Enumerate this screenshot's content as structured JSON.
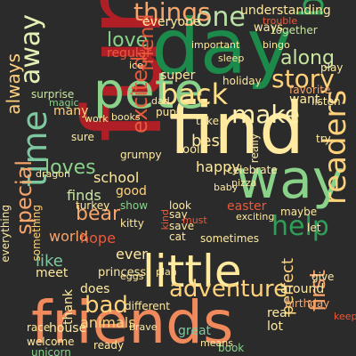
{
  "words": {
    "fun": {
      "text": "fun",
      "color": "#b01f26"
    },
    "friends": {
      "text": "friends",
      "color": "#f08a5d"
    },
    "find": {
      "text": "find",
      "color": "#ffeaa0"
    },
    "day": {
      "text": "day",
      "color": "#1b8a4a"
    },
    "new": {
      "text": "new",
      "color": "#e85a3c"
    },
    "little": {
      "text": "little",
      "color": "#ffeaa0"
    },
    "way": {
      "text": "way",
      "color": "#8ad28a"
    },
    "pete": {
      "text": "pete",
      "color": "#8ad28a"
    },
    "time": {
      "text": "time",
      "color": "#7ec8a0"
    },
    "one": {
      "text": "one",
      "color": "#b9e0a5"
    },
    "big": {
      "text": "big",
      "color": "#2f9f57"
    },
    "things": {
      "text": "things",
      "color": "#f7a56b"
    },
    "love": {
      "text": "love",
      "color": "#8ad28a"
    },
    "back": {
      "text": "back",
      "color": "#ffe08a"
    },
    "make": {
      "text": "make",
      "color": "#fff0b0"
    },
    "story": {
      "text": "story",
      "color": "#ffd27a"
    },
    "along": {
      "text": "along",
      "color": "#c8e6a0"
    },
    "away": {
      "text": "away",
      "color": "#e3f0b6"
    },
    "special": {
      "text": "special",
      "color": "#f7a56b"
    },
    "always": {
      "text": "always",
      "color": "#ffcf7a"
    },
    "loves": {
      "text": "loves",
      "color": "#8ad28a"
    },
    "adventure": {
      "text": "adventure",
      "color": "#ffd27a"
    },
    "help": {
      "text": "help",
      "color": "#2f9f57"
    },
    "readers": {
      "text": "readers",
      "color": "#ffd27a"
    },
    "excited": {
      "text": "excited",
      "color": "#e85a3c"
    },
    "bear": {
      "text": "bear",
      "color": "#f7a56b"
    },
    "bad": {
      "text": "bad",
      "color": "#ffd27a"
    },
    "school": {
      "text": "school",
      "color": "#ffeaa0"
    },
    "friend": {
      "text": "friend",
      "color": "#e85a3c"
    },
    "super": {
      "text": "super",
      "color": "#ffeaa0"
    },
    "everyone": {
      "text": "everyone",
      "color": "#ffeaa0"
    },
    "regular": {
      "text": "regular",
      "color": "#e85a3c"
    },
    "many": {
      "text": "many",
      "color": "#ffd27a"
    },
    "world": {
      "text": "world",
      "color": "#f7a56b"
    },
    "like": {
      "text": "like",
      "color": "#7ec8a0"
    },
    "ever": {
      "text": "ever",
      "color": "#ffeaa0"
    },
    "good": {
      "text": "good",
      "color": "#ffd27a"
    },
    "finds": {
      "text": "finds",
      "color": "#c8e6a0"
    },
    "perfect": {
      "text": "perfect",
      "color": "#ffd27a"
    },
    "happy": {
      "text": "happy",
      "color": "#ffeaa0"
    },
    "best": {
      "text": "best",
      "color": "#ffeaa0"
    },
    "house": {
      "text": "house",
      "color": "#ffeaa0"
    },
    "animals": {
      "text": "animals",
      "color": "#ffd27a"
    },
    "first": {
      "text": "first",
      "color": "#f7a56b"
    },
    "understanding": {
      "text": "understanding",
      "color": "#ffeaa0"
    },
    "want": {
      "text": "want",
      "color": "#ffeaa0"
    },
    "together": {
      "text": "together",
      "color": "#c8e6a0"
    },
    "holiday": {
      "text": "holiday",
      "color": "#ffeaa0"
    },
    "pups": {
      "text": "pups",
      "color": "#ffeaa0"
    },
    "dad": {
      "text": "dad",
      "color": "#ffeaa0"
    },
    "grumpy": {
      "text": "grumpy",
      "color": "#ffeaa0"
    },
    "cool": {
      "text": "cool",
      "color": "#ffeaa0"
    },
    "ice": {
      "text": "ice",
      "color": "#ffeaa0"
    },
    "sure": {
      "text": "sure",
      "color": "#ffeaa0"
    },
    "surprise": {
      "text": "surprise",
      "color": "#c8e6a0"
    },
    "thank": {
      "text": "thank",
      "color": "#ffeaa0"
    },
    "does": {
      "text": "does",
      "color": "#ffeaa0"
    },
    "princess": {
      "text": "princess",
      "color": "#ffeaa0"
    },
    "hope": {
      "text": "hope",
      "color": "#e85a3c"
    },
    "turkey": {
      "text": "turkey",
      "color": "#ffeaa0"
    },
    "kitty": {
      "text": "kitty",
      "color": "#ffeaa0"
    },
    "show": {
      "text": "show",
      "color": "#8ad28a"
    },
    "look": {
      "text": "look",
      "color": "#ffeaa0"
    },
    "say": {
      "text": "say",
      "color": "#ffeaa0"
    },
    "save": {
      "text": "save",
      "color": "#ffeaa0"
    },
    "cat": {
      "text": "cat",
      "color": "#ffeaa0"
    },
    "sometimes": {
      "text": "sometimes",
      "color": "#ffeaa0"
    },
    "celebrate": {
      "text": "celebrate",
      "color": "#ffeaa0"
    },
    "easter": {
      "text": "easter",
      "color": "#e85a3c"
    },
    "maybe": {
      "text": "maybe",
      "color": "#ffeaa0"
    },
    "let": {
      "text": "let",
      "color": "#ffeaa0"
    },
    "around": {
      "text": "around",
      "color": "#ffeaa0"
    },
    "birthday": {
      "text": "birthday",
      "color": "#f7a56b"
    },
    "give": {
      "text": "give",
      "color": "#ffeaa0"
    },
    "listen": {
      "text": "listen",
      "color": "#ffeaa0"
    },
    "favorite": {
      "text": "favorite",
      "color": "#f7a56b"
    },
    "try": {
      "text": "try",
      "color": "#ffeaa0"
    },
    "take": {
      "text": "take",
      "color": "#ffeaa0"
    },
    "ready": {
      "text": "ready",
      "color": "#ffeaa0"
    },
    "welcome": {
      "text": "welcome",
      "color": "#ffeaa0"
    },
    "unicorn": {
      "text": "unicorn",
      "color": "#8ad28a"
    },
    "race": {
      "text": "race",
      "color": "#ffeaa0"
    },
    "brave": {
      "text": "brave",
      "color": "#ffeaa0"
    },
    "great": {
      "text": "great",
      "color": "#7ec8a0"
    },
    "book": {
      "text": "book",
      "color": "#8ad28a"
    },
    "means": {
      "text": "means",
      "color": "#ffeaa0"
    },
    "lot": {
      "text": "lot",
      "color": "#ffeaa0"
    },
    "real": {
      "text": "real",
      "color": "#ffeaa0"
    },
    "meet": {
      "text": "meet",
      "color": "#ffeaa0"
    },
    "everything": {
      "text": "everything",
      "color": "#ffeaa0"
    },
    "something": {
      "text": "something",
      "color": "#ffd27a"
    },
    "dragon": {
      "text": "dragon",
      "color": "#ffeaa0"
    },
    "magic": {
      "text": "magic",
      "color": "#8ad28a"
    },
    "bingo": {
      "text": "bingo",
      "color": "#ffeaa0"
    },
    "important": {
      "text": "important",
      "color": "#ffeaa0"
    },
    "sleep": {
      "text": "sleep",
      "color": "#ffeaa0"
    },
    "trouble": {
      "text": "trouble",
      "color": "#e85a3c"
    },
    "ways": {
      "text": "ways",
      "color": "#ffeaa0"
    },
    "play": {
      "text": "play",
      "color": "#ffeaa0"
    },
    "work": {
      "text": "work",
      "color": "#ffeaa0"
    },
    "books": {
      "text": "books",
      "color": "#ffeaa0"
    },
    "really": {
      "text": "really",
      "color": "#ffeaa0"
    },
    "pizza": {
      "text": "pizza",
      "color": "#ffeaa0"
    },
    "exciting": {
      "text": "exciting",
      "color": "#ffeaa0"
    },
    "keep": {
      "text": "keep",
      "color": "#e85a3c"
    },
    "eggs": {
      "text": "eggs",
      "color": "#ffeaa0"
    },
    "different": {
      "text": "different",
      "color": "#ffeaa0"
    },
    "plan": {
      "text": "plan",
      "color": "#ffeaa0"
    },
    "baby": {
      "text": "baby",
      "color": "#ffeaa0"
    },
    "must": {
      "text": "must",
      "color": "#e85a3c"
    },
    "kind": {
      "text": "kind",
      "color": "#e85a3c"
    }
  }
}
